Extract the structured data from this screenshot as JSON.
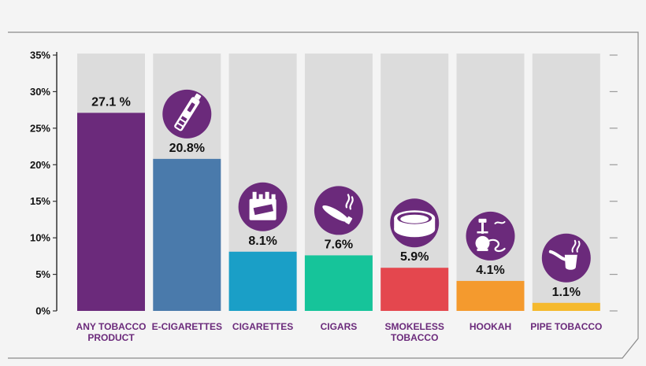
{
  "chart_data": {
    "type": "bar",
    "categories": [
      "ANY TOBACCO PRODUCT",
      "E-CIGARETTES",
      "CIGARETTES",
      "CIGARS",
      "SMOKELESS TOBACCO",
      "HOOKAH",
      "PIPE TOBACCO"
    ],
    "category_lines": [
      [
        "ANY TOBACCO",
        "PRODUCT"
      ],
      [
        "E-CIGARETTES"
      ],
      [
        "CIGARETTES"
      ],
      [
        "CIGARS"
      ],
      [
        "SMOKELESS",
        "TOBACCO"
      ],
      [
        "HOOKAH"
      ],
      [
        "PIPE TOBACCO"
      ]
    ],
    "values": [
      27.1,
      20.8,
      8.1,
      7.6,
      5.9,
      4.1,
      1.1
    ],
    "value_labels": [
      "27.1 %",
      "20.8%",
      "8.1%",
      "7.6%",
      "5.9%",
      "4.1%",
      "1.1%"
    ],
    "y_ticks": [
      "0%",
      "5%",
      "10%",
      "15%",
      "20%",
      "25%",
      "30%",
      "35%"
    ],
    "ylim": [
      0,
      35
    ],
    "grid": false,
    "title": "",
    "xlabel": "",
    "ylabel": "",
    "colors": {
      "bars": [
        "#6b2a7b",
        "#4a7aab",
        "#1a9fc7",
        "#16c49a",
        "#e4474e",
        "#f49a2e",
        "#f5b92d"
      ],
      "background_bar": "#dcdcdc",
      "icon_circle": "#6b2a7b",
      "category_text": "#6b2a7b",
      "axis": "#333333",
      "panel": "#f4f4f4",
      "frame": "#8a8a8a"
    },
    "icons": [
      null,
      "e-cigarette-icon",
      "cigarette-pack-icon",
      "cigar-icon",
      "smokeless-tobacco-tin-icon",
      "hookah-icon",
      "pipe-icon"
    ]
  }
}
